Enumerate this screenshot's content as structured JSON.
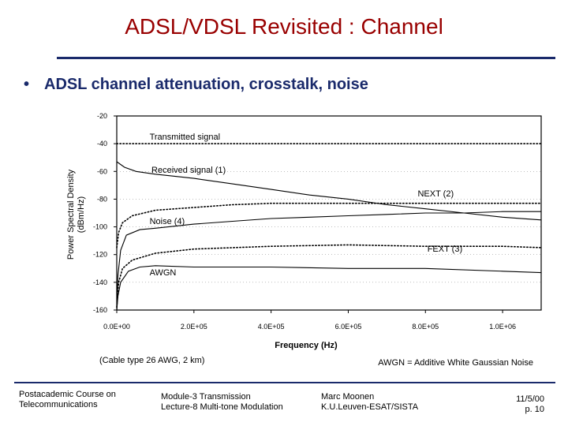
{
  "slide": {
    "title": "ADSL/VDSL Revisited : Channel",
    "bullet_marker": "•",
    "bullet": "ADSL channel attenuation, crosstalk, noise"
  },
  "colors": {
    "title": "#990000",
    "accent": "#1a2a6b"
  },
  "chart_data": {
    "type": "line",
    "xlabel": "Frequency (Hz)",
    "ylabel_line1": "Power Spectral Density",
    "ylabel_line2": "(dBm/Hz)",
    "xlim": [
      0,
      1100000
    ],
    "ylim": [
      -160,
      -20
    ],
    "x_ticks": [
      0,
      200000,
      400000,
      600000,
      800000,
      1000000
    ],
    "x_tick_labels": [
      "0.0E+00",
      "2.0E+05",
      "4.0E+05",
      "6.0E+05",
      "8.0E+05",
      "1.0E+06"
    ],
    "y_ticks": [
      -20,
      -40,
      -60,
      -80,
      -100,
      -120,
      -140,
      -160
    ],
    "y_tick_labels": [
      "-20",
      "-40",
      "-60",
      "-80",
      "-100",
      "-120",
      "-140",
      "-160"
    ],
    "series": [
      {
        "name": "Transmitted signal",
        "style": "dotted",
        "points": [
          [
            0,
            -40
          ],
          [
            1100000,
            -40
          ]
        ]
      },
      {
        "name": "Received signal (1)",
        "style": "solid",
        "points": [
          [
            0,
            -53
          ],
          [
            20000,
            -57
          ],
          [
            50000,
            -60
          ],
          [
            100000,
            -62
          ],
          [
            200000,
            -65
          ],
          [
            300000,
            -69
          ],
          [
            400000,
            -73
          ],
          [
            500000,
            -77
          ],
          [
            600000,
            -80
          ],
          [
            700000,
            -84
          ],
          [
            800000,
            -87
          ],
          [
            900000,
            -90
          ],
          [
            1000000,
            -93
          ],
          [
            1100000,
            -95
          ]
        ]
      },
      {
        "name": "NEXT (2)",
        "style": "dotted",
        "points": [
          [
            0,
            -115
          ],
          [
            5000,
            -104
          ],
          [
            15000,
            -97
          ],
          [
            40000,
            -92
          ],
          [
            100000,
            -88
          ],
          [
            200000,
            -86
          ],
          [
            300000,
            -84
          ],
          [
            400000,
            -83
          ],
          [
            500000,
            -83
          ],
          [
            600000,
            -83
          ],
          [
            700000,
            -83
          ],
          [
            800000,
            -83
          ],
          [
            900000,
            -83
          ],
          [
            1000000,
            -83
          ],
          [
            1100000,
            -83
          ]
        ]
      },
      {
        "name": "Noise (4)",
        "style": "solid",
        "points": [
          [
            0,
            -160
          ],
          [
            3000,
            -135
          ],
          [
            10000,
            -117
          ],
          [
            25000,
            -106
          ],
          [
            60000,
            -102
          ],
          [
            100000,
            -101
          ],
          [
            200000,
            -98
          ],
          [
            300000,
            -96
          ],
          [
            400000,
            -94
          ],
          [
            500000,
            -93
          ],
          [
            600000,
            -92
          ],
          [
            700000,
            -91
          ],
          [
            800000,
            -90
          ],
          [
            900000,
            -90
          ],
          [
            1000000,
            -89
          ],
          [
            1100000,
            -89
          ]
        ]
      },
      {
        "name": "FEXT (3)",
        "style": "dotted",
        "points": [
          [
            0,
            -158
          ],
          [
            5000,
            -140
          ],
          [
            15000,
            -130
          ],
          [
            40000,
            -124
          ],
          [
            100000,
            -119
          ],
          [
            200000,
            -116
          ],
          [
            400000,
            -114
          ],
          [
            600000,
            -113
          ],
          [
            800000,
            -114
          ],
          [
            1000000,
            -114
          ],
          [
            1100000,
            -115
          ]
        ]
      },
      {
        "name": "AWGN",
        "style": "solid",
        "points": [
          [
            0,
            -160
          ],
          [
            3000,
            -150
          ],
          [
            10000,
            -140
          ],
          [
            30000,
            -132
          ],
          [
            60000,
            -129
          ],
          [
            100000,
            -128
          ],
          [
            200000,
            -129
          ],
          [
            400000,
            -129
          ],
          [
            600000,
            -130
          ],
          [
            800000,
            -130
          ],
          [
            1000000,
            -132
          ],
          [
            1100000,
            -133
          ]
        ]
      }
    ],
    "annotations": [
      {
        "text": "Transmitted signal",
        "x": 85000,
        "y": -37
      },
      {
        "text": "Received signal (1)",
        "x": 90000,
        "y": -61
      },
      {
        "text": "NEXT (2)",
        "x": 780000,
        "y": -78
      },
      {
        "text": "Noise (4)",
        "x": 85000,
        "y": -98
      },
      {
        "text": "FEXT (3)",
        "x": 805000,
        "y": -118
      },
      {
        "text": "AWGN",
        "x": 85000,
        "y": -135
      }
    ],
    "caption_left": "(Cable type 26 AWG, 2 km)",
    "caption_right": "AWGN = Additive White Gaussian Noise"
  },
  "footer": {
    "course_line1": "Postacademic Course on",
    "course_line2": "Telecommunications",
    "module_line1": "Module-3  Transmission",
    "module_line2": "Lecture-8  Multi-tone Modulation",
    "author_line1": "Marc Moonen",
    "author_line2": "K.U.Leuven-ESAT/SISTA",
    "date": "11/5/00",
    "page": "p. 10"
  }
}
